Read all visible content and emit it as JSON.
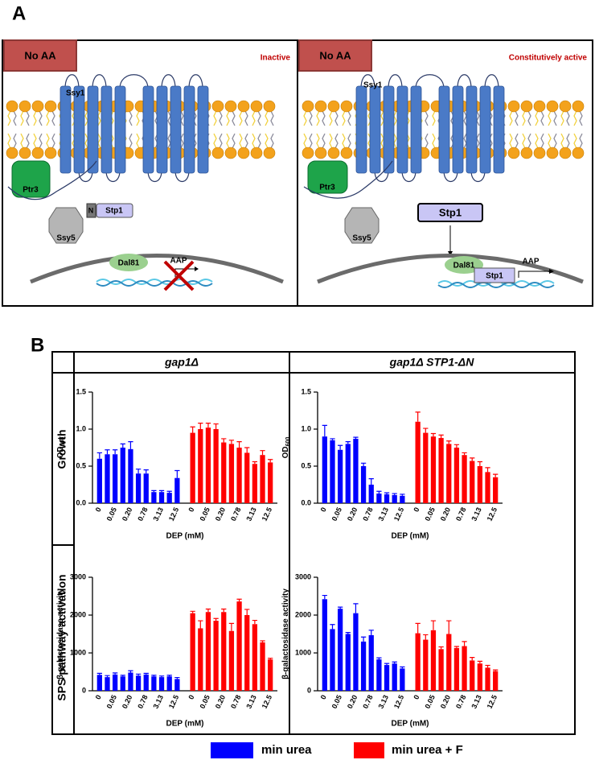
{
  "figure": {
    "panel_a_label": "A",
    "panel_b_label": "B"
  },
  "panel_a": {
    "left": {
      "condition": "No AA",
      "state": "Inactive",
      "sensor": "Ssy1",
      "ptr3": "Ptr3",
      "ssy5": "Ssy5",
      "n_domain": "N",
      "stp1": "Stp1",
      "dal81": "Dal81",
      "gene": "AAP"
    },
    "right": {
      "condition": "No AA",
      "state": "Constitutively active",
      "sensor": "Ssy1",
      "ptr3": "Ptr3",
      "ssy5": "Ssy5",
      "stp1": "Stp1",
      "dal81": "Dal81",
      "stp1_nuclear": "Stp1",
      "gene": "AAP"
    }
  },
  "table": {
    "headers": [
      "gap1Δ",
      "gap1Δ STP1-ΔN"
    ],
    "rows": [
      "Growth",
      "SPS pathway activation"
    ]
  },
  "chart_data": [
    {
      "type": "bar",
      "xlabel": "DEP (mM)",
      "ylabel": "OD",
      "ylabel_sub": "600",
      "categories": [
        "0",
        null,
        "0.05",
        null,
        "0.20",
        null,
        "0.78",
        null,
        "3.13",
        null,
        "12.5",
        "0",
        null,
        "0.05",
        null,
        "0.20",
        null,
        "0.78",
        null,
        "3.13",
        null,
        "12.5"
      ],
      "ylim": [
        0,
        1.5
      ],
      "yticks": [
        {
          "value": 0,
          "label": "0.0"
        },
        0.5,
        {
          "value": 1,
          "label": "1.0"
        },
        1.5
      ],
      "series": [
        {
          "name": "min urea",
          "color": "#0000ff",
          "values": [
            0.6,
            0.66,
            0.66,
            0.75,
            0.73,
            0.4,
            0.4,
            0.15,
            0.15,
            0.14,
            0.34,
            null,
            null,
            null,
            null,
            null,
            null,
            null,
            null,
            null,
            null,
            null
          ],
          "errors": [
            0.08,
            0.06,
            0.06,
            0.05,
            0.1,
            0.06,
            0.05,
            0.02,
            0.02,
            0.02,
            0.1,
            null,
            null,
            null,
            null,
            null,
            null,
            null,
            null,
            null,
            null,
            null
          ]
        },
        {
          "name": "min urea + F",
          "color": "#ff0000",
          "values": [
            null,
            null,
            null,
            null,
            null,
            null,
            null,
            null,
            null,
            null,
            null,
            0.95,
            1.0,
            1.02,
            1.0,
            0.82,
            0.8,
            0.75,
            0.68,
            0.53,
            0.65,
            0.55
          ],
          "errors": [
            null,
            null,
            null,
            null,
            null,
            null,
            null,
            null,
            null,
            null,
            null,
            0.08,
            0.08,
            0.06,
            0.07,
            0.05,
            0.05,
            0.08,
            0.07,
            0.03,
            0.06,
            0.04
          ]
        }
      ]
    },
    {
      "type": "bar",
      "xlabel": "DEP (mM)",
      "ylabel": "OD",
      "ylabel_sub": "600",
      "categories": [
        "0",
        null,
        "0.05",
        null,
        "0.20",
        null,
        "0.78",
        null,
        "3.13",
        null,
        "12.5",
        "0",
        null,
        "0.05",
        null,
        "0.20",
        null,
        "0.78",
        null,
        "3.13",
        null,
        "12.5"
      ],
      "ylim": [
        0,
        1.5
      ],
      "yticks": [
        {
          "value": 0,
          "label": "0.0"
        },
        0.5,
        {
          "value": 1,
          "label": "1.0"
        },
        1.5
      ],
      "series": [
        {
          "name": "min urea",
          "color": "#0000ff",
          "values": [
            0.9,
            0.85,
            0.72,
            0.8,
            0.87,
            0.5,
            0.25,
            0.13,
            0.12,
            0.11,
            0.1,
            null,
            null,
            null,
            null,
            null,
            null,
            null,
            null,
            null,
            null,
            null
          ],
          "errors": [
            0.15,
            0.02,
            0.06,
            0.03,
            0.02,
            0.04,
            0.08,
            0.03,
            0.02,
            0.02,
            0.02,
            null,
            null,
            null,
            null,
            null,
            null,
            null,
            null,
            null,
            null,
            null
          ]
        },
        {
          "name": "min urea + F",
          "color": "#ff0000",
          "values": [
            null,
            null,
            null,
            null,
            null,
            null,
            null,
            null,
            null,
            null,
            null,
            1.1,
            0.95,
            0.9,
            0.88,
            0.8,
            0.75,
            0.65,
            0.57,
            0.5,
            0.42,
            0.35
          ],
          "errors": [
            null,
            null,
            null,
            null,
            null,
            null,
            null,
            null,
            null,
            null,
            null,
            0.13,
            0.06,
            0.04,
            0.04,
            0.04,
            0.04,
            0.03,
            0.04,
            0.06,
            0.06,
            0.04
          ]
        }
      ]
    },
    {
      "type": "bar",
      "xlabel": "DEP (mM)",
      "ylabel": "β-galactosidase activity",
      "categories": [
        "0",
        null,
        "0.05",
        null,
        "0.20",
        null,
        "0.78",
        null,
        "3.13",
        null,
        "12.5",
        "0",
        null,
        "0.05",
        null,
        "0.20",
        null,
        "0.78",
        null,
        "3.13",
        null,
        "12.5"
      ],
      "ylim": [
        0,
        3000
      ],
      "yticks": [
        0,
        1000,
        2000,
        3000
      ],
      "series": [
        {
          "name": "min urea",
          "color": "#0000ff",
          "values": [
            420,
            360,
            430,
            380,
            480,
            400,
            430,
            380,
            360,
            380,
            310,
            null,
            null,
            null,
            null,
            null,
            null,
            null,
            null,
            null,
            null,
            null
          ],
          "errors": [
            40,
            40,
            40,
            30,
            50,
            40,
            30,
            30,
            30,
            30,
            40,
            null,
            null,
            null,
            null,
            null,
            null,
            null,
            null,
            null,
            null,
            null
          ]
        },
        {
          "name": "min urea + F",
          "color": "#ff0000",
          "values": [
            null,
            null,
            null,
            null,
            null,
            null,
            null,
            null,
            null,
            null,
            null,
            2050,
            1650,
            2080,
            1850,
            2080,
            1580,
            2360,
            2000,
            1760,
            1280,
            830
          ],
          "errors": [
            null,
            null,
            null,
            null,
            null,
            null,
            null,
            null,
            null,
            null,
            null,
            50,
            200,
            80,
            60,
            80,
            200,
            60,
            150,
            100,
            40,
            30
          ]
        }
      ]
    },
    {
      "type": "bar",
      "xlabel": "DEP (mM)",
      "ylabel": "β-galactosidase activity",
      "categories": [
        "0",
        null,
        "0.05",
        null,
        "0.20",
        null,
        "0.78",
        null,
        "3.13",
        null,
        "12.5",
        "0",
        null,
        "0.05",
        null,
        "0.20",
        null,
        "0.78",
        null,
        "3.13",
        null,
        "12.5"
      ],
      "ylim": [
        0,
        3000
      ],
      "yticks": [
        0,
        1000,
        2000,
        3000
      ],
      "series": [
        {
          "name": "min urea",
          "color": "#0000ff",
          "values": [
            2420,
            1630,
            2170,
            1500,
            2050,
            1300,
            1470,
            830,
            680,
            720,
            590,
            null,
            null,
            null,
            null,
            null,
            null,
            null,
            null,
            null,
            null,
            null
          ],
          "errors": [
            100,
            120,
            40,
            40,
            250,
            120,
            130,
            40,
            40,
            40,
            40,
            null,
            null,
            null,
            null,
            null,
            null,
            null,
            null,
            null,
            null,
            null
          ]
        },
        {
          "name": "min urea + F",
          "color": "#ff0000",
          "values": [
            null,
            null,
            null,
            null,
            null,
            null,
            null,
            null,
            null,
            null,
            null,
            1520,
            1350,
            1600,
            1100,
            1500,
            1130,
            1180,
            800,
            720,
            610,
            520
          ],
          "errors": [
            null,
            null,
            null,
            null,
            null,
            null,
            null,
            null,
            null,
            null,
            null,
            260,
            130,
            250,
            60,
            350,
            40,
            120,
            80,
            60,
            60,
            30
          ]
        }
      ]
    }
  ]
}
